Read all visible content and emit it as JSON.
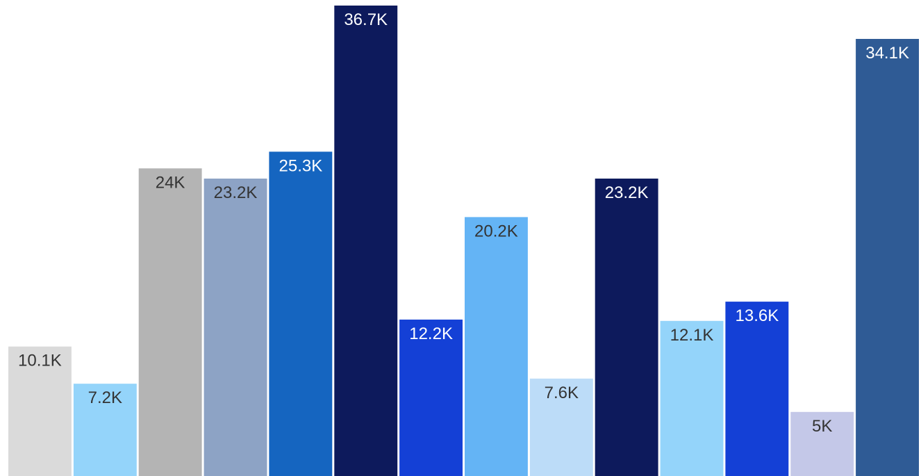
{
  "chart_data": {
    "type": "bar",
    "title": "",
    "xlabel": "",
    "ylabel": "",
    "ylim": [
      0,
      36700
    ],
    "grid": false,
    "legend": "none",
    "categories": [
      "",
      "",
      "",
      "",
      "",
      "",
      "",
      "",
      "",
      "",
      "",
      "",
      "",
      ""
    ],
    "values": [
      10100,
      7200,
      24000,
      23200,
      25300,
      36700,
      12200,
      20200,
      7600,
      23200,
      12100,
      13600,
      5000,
      34100
    ],
    "labels": [
      "10.1K",
      "7.2K",
      "24K",
      "23.2K",
      "25.3K",
      "36.7K",
      "12.2K",
      "20.2K",
      "7.6K",
      "23.2K",
      "12.1K",
      "13.6K",
      "5K",
      "34.1K"
    ],
    "colors": [
      "#dadada",
      "#94d4fa",
      "#b4b4b4",
      "#8da3c5",
      "#1565c0",
      "#0d1a5c",
      "#1440d6",
      "#64b4f5",
      "#bcdcf8",
      "#0d1a5c",
      "#94d4fa",
      "#1440d6",
      "#c4c8e8",
      "#2f5b95"
    ],
    "label_colors": [
      "#333333",
      "#333333",
      "#333333",
      "#333333",
      "#ffffff",
      "#ffffff",
      "#ffffff",
      "#333333",
      "#333333",
      "#ffffff",
      "#333333",
      "#ffffff",
      "#333333",
      "#ffffff"
    ]
  }
}
